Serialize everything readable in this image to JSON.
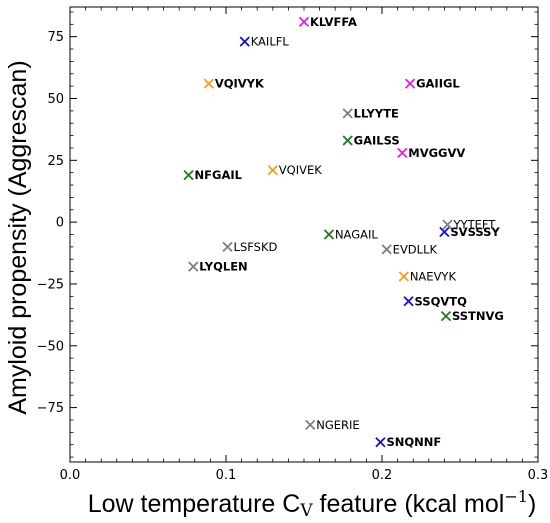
{
  "chart_data": {
    "type": "scatter",
    "title": "",
    "xlabel": {
      "main": "Low temperature C",
      "sub": "V",
      "unit_prefix": " feature (kcal mol",
      "unit_exp": "−1",
      "unit_suffix": ")"
    },
    "ylabel": "Amyloid propensity (Aggrescan)",
    "xlim": [
      0.0,
      0.3
    ],
    "ylim": [
      -97,
      87
    ],
    "xticks": [
      0.0,
      0.1,
      0.2,
      0.3
    ],
    "xtick_labels": [
      "0.0",
      "0.1",
      "0.2",
      "0.3"
    ],
    "yticks": [
      75,
      50,
      25,
      0,
      -25,
      -50,
      -75
    ],
    "ytick_labels": [
      "75",
      "50",
      "25",
      "0",
      "−25",
      "−50",
      "−75"
    ],
    "grid": false,
    "marker": "x",
    "colors": {
      "magenta": "#e020e0",
      "blue": "#1010d8",
      "orange": "#f0a020",
      "gray": "#808080",
      "green": "#1f7a1f"
    },
    "points": [
      {
        "label": "KLVFFA",
        "x": 0.15,
        "y": 81,
        "color": "magenta",
        "bold": true
      },
      {
        "label": "KAILFL",
        "x": 0.112,
        "y": 73,
        "color": "blue",
        "bold": false
      },
      {
        "label": "VQIVYK",
        "x": 0.089,
        "y": 56,
        "color": "orange",
        "bold": true
      },
      {
        "label": "GAIIGL",
        "x": 0.218,
        "y": 56,
        "color": "magenta",
        "bold": true
      },
      {
        "label": "LLYYTE",
        "x": 0.178,
        "y": 44,
        "color": "gray",
        "bold": true
      },
      {
        "label": "GAILSS",
        "x": 0.178,
        "y": 33,
        "color": "green",
        "bold": true
      },
      {
        "label": "MVGGVV",
        "x": 0.213,
        "y": 28,
        "color": "magenta",
        "bold": true
      },
      {
        "label": "VQIVEK",
        "x": 0.13,
        "y": 21,
        "color": "orange",
        "bold": false
      },
      {
        "label": "NFGAIL",
        "x": 0.076,
        "y": 19,
        "color": "green",
        "bold": true
      },
      {
        "label": "YYTEFT",
        "x": 0.242,
        "y": -1,
        "color": "gray",
        "bold": false
      },
      {
        "label": "SVSSSY",
        "x": 0.24,
        "y": -4,
        "color": "blue",
        "bold": true
      },
      {
        "label": "NAGAIL",
        "x": 0.166,
        "y": -5,
        "color": "green",
        "bold": false
      },
      {
        "label": "LSFSKD",
        "x": 0.101,
        "y": -10,
        "color": "gray",
        "bold": false
      },
      {
        "label": "EVDLLK",
        "x": 0.203,
        "y": -11,
        "color": "gray",
        "bold": false
      },
      {
        "label": "LYQLEN",
        "x": 0.079,
        "y": -18,
        "color": "gray",
        "bold": true
      },
      {
        "label": "NAEVYK",
        "x": 0.214,
        "y": -22,
        "color": "orange",
        "bold": false
      },
      {
        "label": "SSQVTQ",
        "x": 0.217,
        "y": -32,
        "color": "blue",
        "bold": true
      },
      {
        "label": "SSTNVG",
        "x": 0.241,
        "y": -38,
        "color": "green",
        "bold": true
      },
      {
        "label": "NGERIE",
        "x": 0.154,
        "y": -82,
        "color": "gray",
        "bold": false
      },
      {
        "label": "SNQNNF",
        "x": 0.199,
        "y": -89,
        "color": "blue",
        "bold": true
      }
    ]
  }
}
